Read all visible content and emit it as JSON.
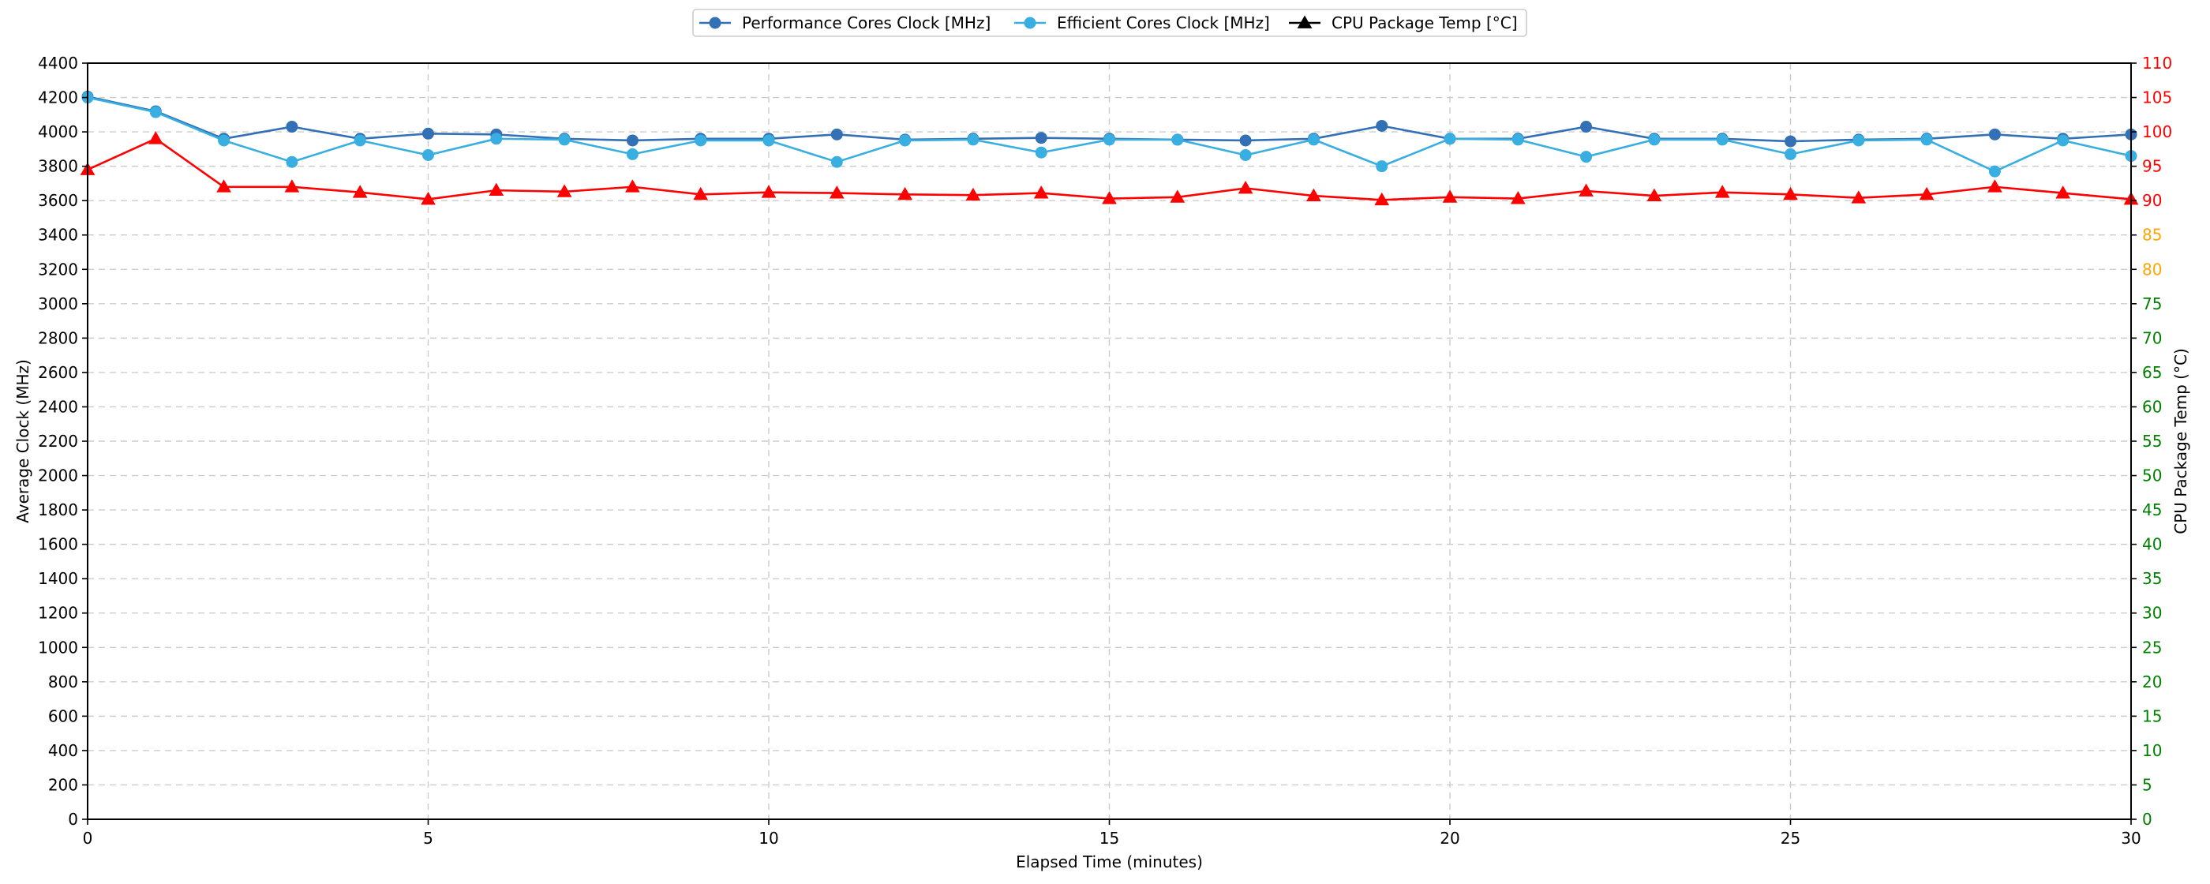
{
  "chart_data": {
    "type": "line",
    "title": "",
    "xlabel": "Elapsed Time (minutes)",
    "ylabel": "Average Clock (MHz)",
    "y2label": "CPU Package Temp (°C)",
    "xlim": [
      0,
      30
    ],
    "ylim": [
      0,
      4400
    ],
    "y2lim": [
      0,
      110
    ],
    "x_ticks": [
      0,
      5,
      10,
      15,
      20,
      25,
      30
    ],
    "y_ticks": [
      0,
      200,
      400,
      600,
      800,
      1000,
      1200,
      1400,
      1600,
      1800,
      2000,
      2200,
      2400,
      2600,
      2800,
      3000,
      3200,
      3400,
      3600,
      3800,
      4000,
      4200,
      4400
    ],
    "y2_ticks": [
      0,
      5,
      10,
      15,
      20,
      25,
      30,
      35,
      40,
      45,
      50,
      55,
      60,
      65,
      70,
      75,
      80,
      85,
      90,
      95,
      100,
      105,
      110
    ],
    "y2_tick_colors": {
      "safe": "#008000",
      "warm": "#FFA500",
      "hot": "#FF0000"
    },
    "grid": true,
    "legend_position": "top-center",
    "x": [
      0,
      1,
      2,
      3,
      4,
      5,
      6,
      7,
      8,
      9,
      10,
      11,
      12,
      13,
      14,
      15,
      16,
      17,
      18,
      19,
      20,
      21,
      22,
      23,
      24,
      25,
      26,
      27,
      28,
      29,
      30
    ],
    "series": [
      {
        "name": "Performance Cores Clock [MHz]",
        "axis": "left",
        "color": "#3370B5",
        "marker": "circle",
        "values": [
          4205,
          4120,
          3960,
          4030,
          3960,
          3990,
          3985,
          3960,
          3950,
          3960,
          3960,
          3985,
          3955,
          3960,
          3965,
          3960,
          3955,
          3950,
          3960,
          4035,
          3960,
          3960,
          4030,
          3960,
          3960,
          3945,
          3955,
          3960,
          3985,
          3960,
          3985
        ]
      },
      {
        "name": "Efficient Cores Clock [MHz]",
        "axis": "left",
        "color": "#39AEE0",
        "marker": "circle",
        "values": [
          4200,
          4115,
          3950,
          3825,
          3950,
          3865,
          3960,
          3955,
          3870,
          3950,
          3950,
          3825,
          3950,
          3955,
          3880,
          3955,
          3955,
          3865,
          3955,
          3800,
          3960,
          3955,
          3855,
          3955,
          3955,
          3870,
          3950,
          3955,
          3770,
          3950,
          3860
        ]
      },
      {
        "name": "CPU Package Temp [°C]",
        "axis": "right",
        "color": "#FF0000",
        "legend_color": "#000000",
        "marker": "triangle",
        "values": [
          94.5,
          99,
          92,
          92,
          91.2,
          90.2,
          91.5,
          91.3,
          92,
          90.9,
          91.2,
          91.1,
          90.9,
          90.8,
          91.1,
          90.3,
          90.5,
          91.8,
          90.7,
          90.1,
          90.5,
          90.3,
          91.4,
          90.7,
          91.2,
          90.9,
          90.4,
          90.9,
          92,
          91.1,
          90.2
        ]
      }
    ]
  }
}
